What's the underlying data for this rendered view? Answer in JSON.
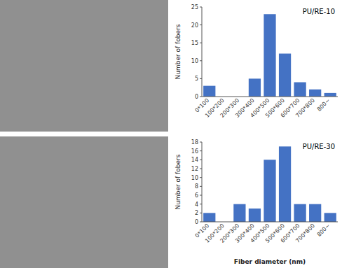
{
  "chart_data": [
    {
      "type": "bar",
      "annotation": "PU/RE-10",
      "categories": [
        "0*100",
        "100*200",
        "200*300",
        "300*400",
        "400*500",
        "500*600",
        "600*700",
        "700*800",
        "800~"
      ],
      "values": [
        3,
        0,
        0,
        5,
        23,
        12,
        4,
        2,
        1
      ],
      "color": "#4472C4",
      "ylabel": "Number of fobers",
      "ylim": [
        0,
        25
      ],
      "yticks": [
        0,
        5,
        10,
        15,
        20,
        25
      ]
    },
    {
      "type": "bar",
      "annotation": "PU/RE-30",
      "categories": [
        "0*100",
        "100*200",
        "200*300",
        "300*400",
        "400*500",
        "500*600",
        "600*700",
        "700*800",
        "800~"
      ],
      "values": [
        2,
        0,
        4,
        3,
        14,
        17,
        4,
        4,
        2
      ],
      "color": "#4472C4",
      "ylabel": "Number of fobers",
      "xlabel": "Fiber diameter (nm)",
      "ylim": [
        0,
        18
      ],
      "yticks": [
        0,
        2,
        4,
        6,
        8,
        10,
        12,
        14,
        16,
        18
      ]
    }
  ]
}
